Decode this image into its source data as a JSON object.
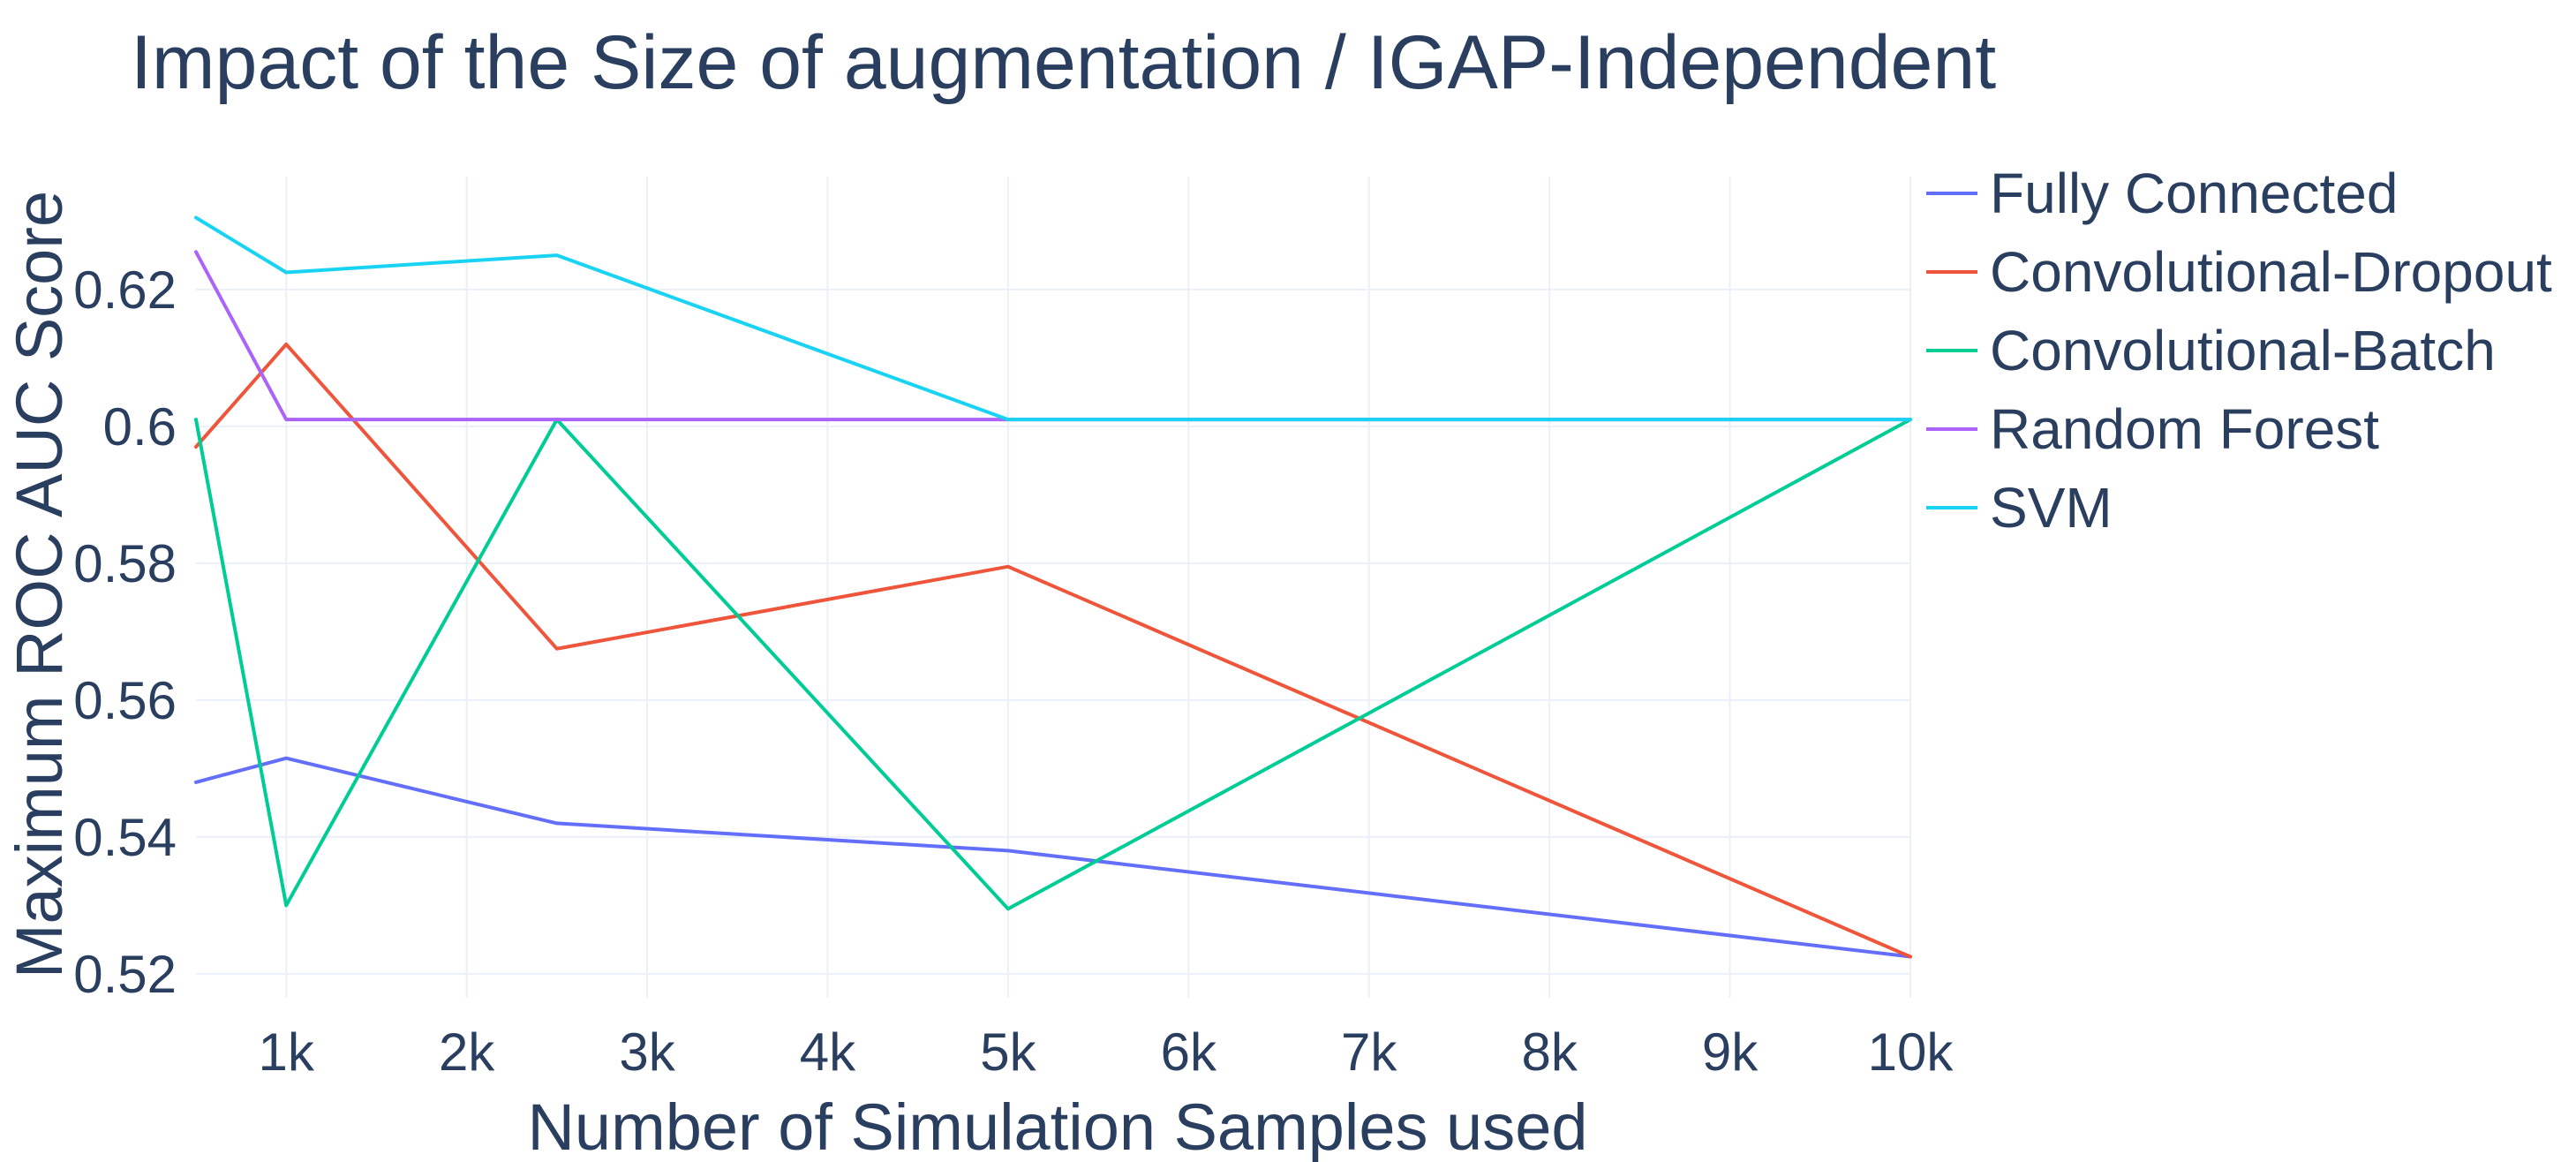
{
  "chart_data": {
    "type": "line",
    "title": "Impact of the Size of augmentation / IGAP-Independent",
    "xlabel": "Number of Simulation Samples used",
    "ylabel": "Maximum ROC AUC Score",
    "x": [
      500,
      1000,
      2500,
      5000,
      10000
    ],
    "xlim": [
      500,
      10000
    ],
    "ylim": [
      0.5165,
      0.6365
    ],
    "x_ticks": [
      1000,
      2000,
      3000,
      4000,
      5000,
      6000,
      7000,
      8000,
      9000,
      10000
    ],
    "x_tick_labels": [
      "1k",
      "2k",
      "3k",
      "4k",
      "5k",
      "6k",
      "7k",
      "8k",
      "9k",
      "10k"
    ],
    "y_ticks": [
      0.52,
      0.54,
      0.56,
      0.58,
      0.6,
      0.62
    ],
    "y_tick_labels": [
      "0.52",
      "0.54",
      "0.56",
      "0.58",
      "0.6",
      "0.62"
    ],
    "grid": true,
    "legend_position": "top-right",
    "series": [
      {
        "name": "Fully Connected",
        "color": "#636efa",
        "values": [
          0.548,
          0.5515,
          0.542,
          0.538,
          0.5225
        ]
      },
      {
        "name": "Convolutional-Dropout",
        "color": "#ef553b",
        "values": [
          0.597,
          0.612,
          0.5675,
          0.5795,
          0.5225
        ]
      },
      {
        "name": "Convolutional-Batch",
        "color": "#00cc96",
        "values": [
          0.601,
          0.53,
          0.601,
          0.5295,
          0.601
        ]
      },
      {
        "name": "Random Forest",
        "color": "#ab63fa",
        "values": [
          0.6255,
          0.601,
          0.601,
          0.601,
          0.601
        ]
      },
      {
        "name": "SVM",
        "color": "#19d3f3",
        "values": [
          0.6305,
          0.6225,
          0.625,
          0.601,
          0.601
        ]
      }
    ]
  }
}
